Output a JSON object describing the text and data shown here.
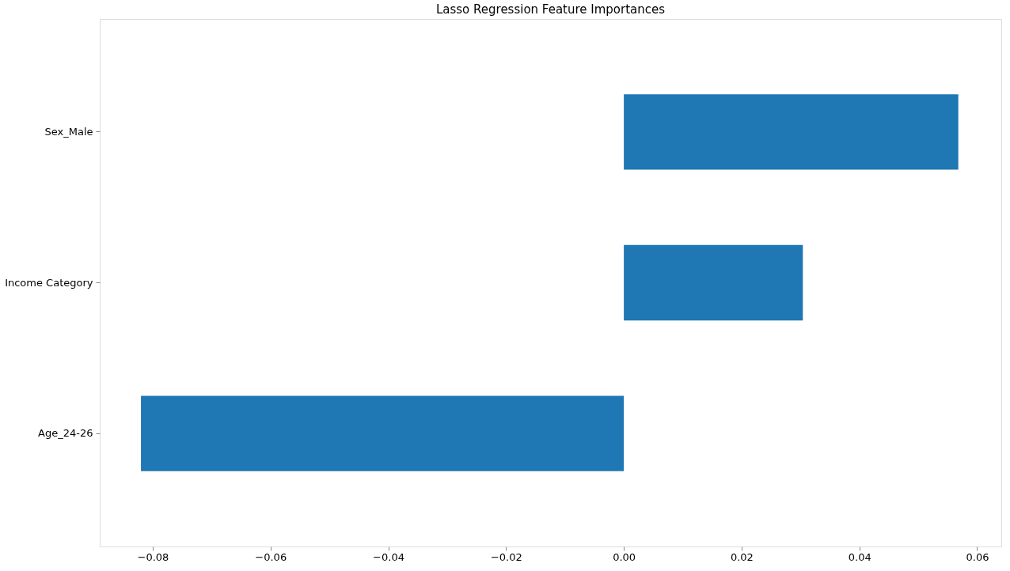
{
  "chart_data": {
    "type": "bar",
    "orientation": "horizontal",
    "title": "Lasso Regression Feature Importances",
    "categories": [
      "Sex_Male",
      "Income Category",
      "Age_24-26"
    ],
    "values": [
      0.0568,
      0.0304,
      -0.082
    ],
    "color": "#1f77b4",
    "xlim": [
      -0.089,
      0.0641
    ],
    "xticks": [
      {
        "value": -0.08,
        "label": "−0.08"
      },
      {
        "value": -0.06,
        "label": "−0.06"
      },
      {
        "value": -0.04,
        "label": "−0.04"
      },
      {
        "value": -0.02,
        "label": "−0.02"
      },
      {
        "value": 0.0,
        "label": "0.00"
      },
      {
        "value": 0.02,
        "label": "0.02"
      },
      {
        "value": 0.04,
        "label": "0.04"
      },
      {
        "value": 0.06,
        "label": "0.06"
      }
    ],
    "grid": false
  }
}
